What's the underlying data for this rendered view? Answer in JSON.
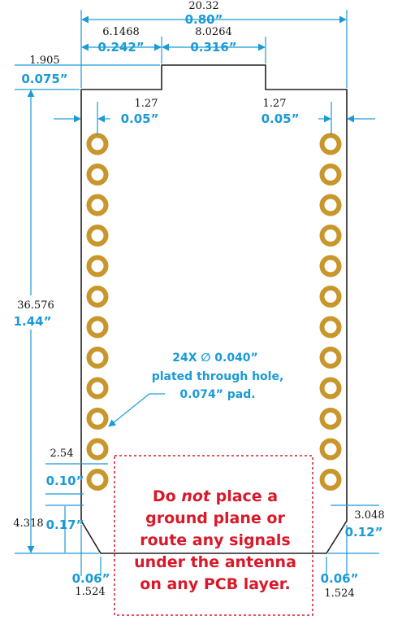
{
  "colors": {
    "dimension": "#1a9ad6",
    "outline": "#222222",
    "pad": "#c8962a",
    "warning": "#d8192a"
  },
  "dimensions": {
    "overall_width": {
      "mm": "20.32",
      "in": "0.80”"
    },
    "left_shoulder": {
      "mm": "6.1468",
      "in": "0.242”"
    },
    "antenna_width": {
      "mm": "8.0264",
      "in": "0.316”"
    },
    "tab_height": {
      "mm": "1.905",
      "in": "0.075”"
    },
    "left_inset": {
      "mm": "1.27",
      "in": "0.05”"
    },
    "right_inset": {
      "mm": "1.27",
      "in": "0.05”"
    },
    "body_height": {
      "mm": "36.576",
      "in": "1.44”"
    },
    "pitch": {
      "mm": "2.54",
      "in": "0.10”"
    },
    "left_bottom": {
      "mm": "4.318",
      "in": "0.17”"
    },
    "right_bottom": {
      "mm": "3.048",
      "in": "0.12”"
    },
    "left_chamfer": {
      "mm": "1.524",
      "in": "0.06”"
    },
    "right_chamfer": {
      "mm": "1.524",
      "in": "0.06”"
    }
  },
  "hole_note": [
    "24X ∅ 0.040”",
    "plated through hole,",
    "0.074” pad."
  ],
  "warning_parts": {
    "line1_a": "Do ",
    "line1_em": "not",
    "line1_b": " place a",
    "line2": "ground plane or",
    "line3": "route any signals",
    "line4": "under the antenna",
    "line5": "on any PCB layer."
  },
  "pads": {
    "per_side": 12
  }
}
